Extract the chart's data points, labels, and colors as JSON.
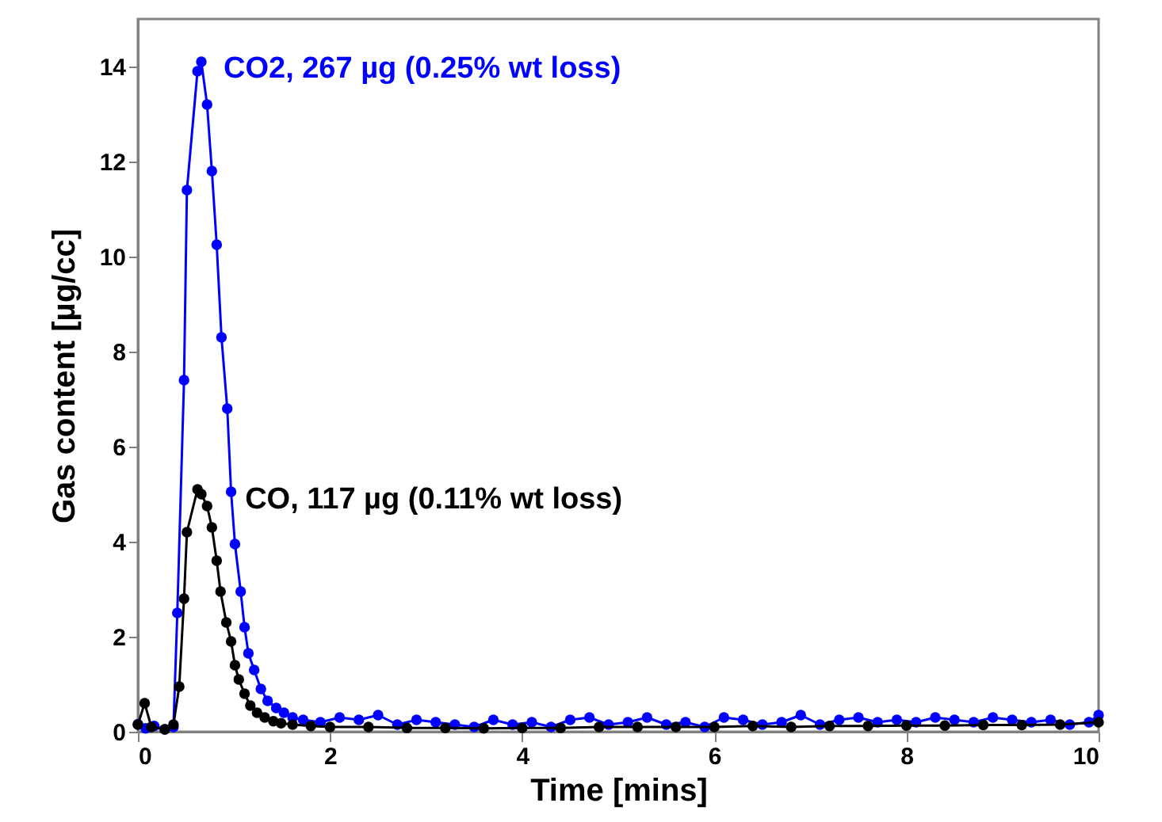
{
  "chart_data": {
    "type": "line",
    "xlabel": "Time [mins]",
    "ylabel": "Gas content [µg/cc]",
    "xlim": [
      0,
      10
    ],
    "ylim": [
      0,
      15
    ],
    "xticks": [
      0,
      2,
      4,
      6,
      8,
      10
    ],
    "yticks": [
      0,
      2,
      4,
      6,
      8,
      10,
      12,
      14
    ],
    "grid": false,
    "marker": "circle",
    "line_style": "solid",
    "series": [
      {
        "color": "#0000ff",
        "x": [
          0,
          0.08,
          0.17,
          0.28,
          0.37,
          0.41,
          0.48,
          0.51,
          0.62,
          0.66,
          0.72,
          0.77,
          0.82,
          0.87,
          0.93,
          0.97,
          1.01,
          1.07,
          1.11,
          1.15,
          1.21,
          1.28,
          1.35,
          1.44,
          1.52,
          1.61,
          1.72,
          1.9,
          2.1,
          2.3,
          2.5,
          2.7,
          2.9,
          3.1,
          3.3,
          3.5,
          3.7,
          3.9,
          4.1,
          4.3,
          4.5,
          4.7,
          4.9,
          5.1,
          5.3,
          5.5,
          5.7,
          5.9,
          6.1,
          6.3,
          6.5,
          6.7,
          6.9,
          7.1,
          7.3,
          7.5,
          7.7,
          7.9,
          8.1,
          8.3,
          8.5,
          8.7,
          8.9,
          9.1,
          9.3,
          9.5,
          9.7,
          9.9,
          10
        ],
        "values": [
          0.16,
          0.07,
          0.12,
          0.05,
          0.1,
          2.5,
          7.4,
          11.4,
          13.9,
          14.1,
          13.2,
          11.8,
          10.25,
          8.3,
          6.8,
          5.05,
          3.95,
          2.95,
          2.2,
          1.65,
          1.3,
          0.9,
          0.65,
          0.5,
          0.4,
          0.3,
          0.25,
          0.2,
          0.3,
          0.25,
          0.35,
          0.15,
          0.25,
          0.2,
          0.15,
          0.1,
          0.25,
          0.15,
          0.2,
          0.1,
          0.25,
          0.3,
          0.15,
          0.2,
          0.3,
          0.15,
          0.2,
          0.1,
          0.3,
          0.25,
          0.15,
          0.2,
          0.35,
          0.15,
          0.25,
          0.3,
          0.2,
          0.25,
          0.2,
          0.3,
          0.25,
          0.2,
          0.3,
          0.25,
          0.2,
          0.25,
          0.15,
          0.2,
          0.35
        ]
      },
      {
        "color": "#000000",
        "x": [
          0,
          0.07,
          0.14,
          0.28,
          0.37,
          0.43,
          0.48,
          0.51,
          0.62,
          0.66,
          0.72,
          0.77,
          0.82,
          0.86,
          0.92,
          0.97,
          1.01,
          1.05,
          1.11,
          1.17,
          1.24,
          1.32,
          1.41,
          1.49,
          1.61,
          1.8,
          2.0,
          2.4,
          2.8,
          3.2,
          3.6,
          4.0,
          4.4,
          4.8,
          5.2,
          5.6,
          6.0,
          6.4,
          6.8,
          7.2,
          7.6,
          8.0,
          8.4,
          8.8,
          9.2,
          9.6,
          10
        ],
        "values": [
          0.15,
          0.6,
          0.1,
          0.05,
          0.15,
          0.95,
          2.8,
          4.2,
          5.1,
          5.0,
          4.75,
          4.3,
          3.6,
          2.95,
          2.3,
          1.9,
          1.4,
          1.1,
          0.8,
          0.55,
          0.4,
          0.3,
          0.22,
          0.18,
          0.15,
          0.12,
          0.1,
          0.1,
          0.08,
          0.08,
          0.07,
          0.08,
          0.08,
          0.1,
          0.1,
          0.1,
          0.1,
          0.12,
          0.1,
          0.12,
          0.12,
          0.13,
          0.13,
          0.14,
          0.14,
          0.15,
          0.2
        ]
      }
    ],
    "annotations": [
      "CO2, 267 µg (0.25% wt loss)",
      "CO, 117 µg (0.11% wt loss)"
    ]
  }
}
